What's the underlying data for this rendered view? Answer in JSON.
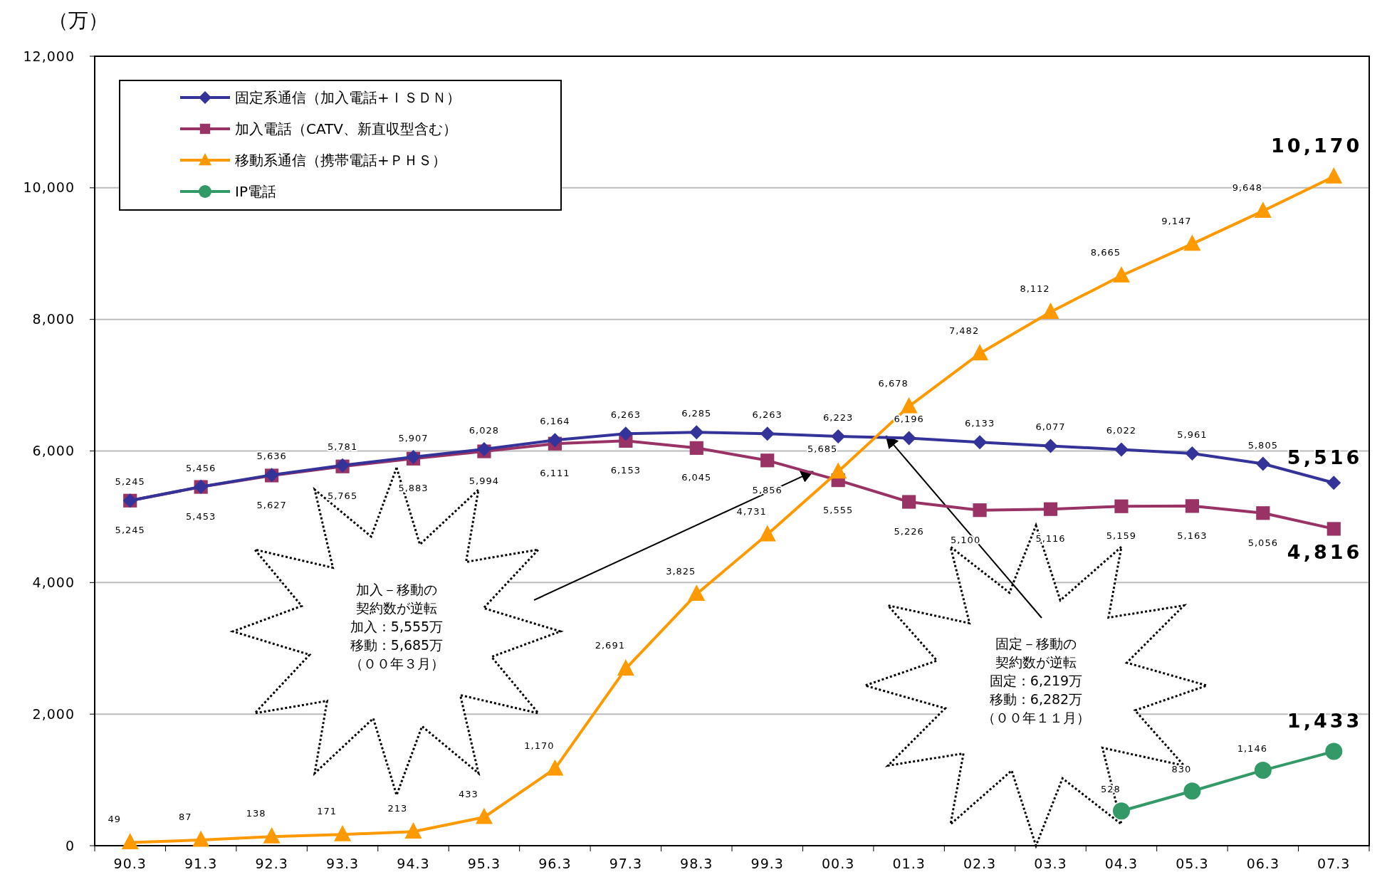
{
  "chart_data": {
    "type": "line",
    "ylabel": "（万）",
    "categories": [
      "90.3",
      "91.3",
      "92.3",
      "93.3",
      "94.3",
      "95.3",
      "96.3",
      "97.3",
      "98.3",
      "99.3",
      "00.3",
      "01.3",
      "02.3",
      "03.3",
      "04.3",
      "05.3",
      "06.3",
      "07.3"
    ],
    "ylim": [
      0,
      12000
    ],
    "yticks": [
      0,
      {
        "value": 2000,
        "label": "2,000"
      },
      {
        "value": 4000,
        "label": "4,000"
      },
      {
        "value": 6000,
        "label": "6,000"
      },
      {
        "value": 8000,
        "label": "8,000"
      },
      {
        "value": 10000,
        "label": "10,000"
      },
      {
        "value": 12000,
        "label": "12,000"
      }
    ],
    "grid": "y",
    "legend": "top left",
    "series": [
      {
        "name": "固定系通信（加入電話+ＩＳＤＮ）",
        "color": "#333399",
        "marker": "diamond",
        "values": [
          5245,
          5456,
          5636,
          5781,
          5907,
          6028,
          6164,
          6263,
          6285,
          6263,
          6223,
          6196,
          6133,
          6077,
          6022,
          5961,
          5805,
          5516
        ],
        "value_labels": [
          "5,245",
          "5,456",
          "5,636",
          "5,781",
          "5,907",
          "6,028",
          "6,164",
          "6,263",
          "6,285",
          "6,263",
          "6,223",
          "6,196",
          "6,133",
          "6,077",
          "6,022",
          "5,961",
          "5,805",
          "5,516"
        ]
      },
      {
        "name": "加入電話（CATV、新直収型含む）",
        "color": "#993366",
        "marker": "square",
        "values": [
          5245,
          5453,
          5627,
          5765,
          5883,
          5994,
          6111,
          6153,
          6045,
          5856,
          5555,
          5226,
          5100,
          5116,
          5159,
          5163,
          5056,
          4816
        ],
        "value_labels": [
          "5,245",
          "5,453",
          "5,627",
          "5,765",
          "5,883",
          "5,994",
          "6,111",
          "6,153",
          "6,045",
          "5,856",
          "5,555",
          "5,226",
          "5,100",
          "5,116",
          "5,159",
          "5,163",
          "5,056",
          "4,816"
        ]
      },
      {
        "name": "移動系通信（携帯電話+ＰＨＳ）",
        "color": "#ff9900",
        "marker": "triangle",
        "values": [
          49,
          87,
          138,
          171,
          213,
          433,
          1170,
          2691,
          3825,
          4731,
          5685,
          6678,
          7482,
          8112,
          8665,
          9147,
          9648,
          10170
        ],
        "value_labels": [
          "49",
          "87",
          "138",
          "171",
          "213",
          "433",
          "1,170",
          "2,691",
          "3,825",
          "4,731",
          "5,685",
          "6,678",
          "7,482",
          "8,112",
          "8,665",
          "9,147",
          "9,648",
          "10,170"
        ]
      },
      {
        "name": "IP電話",
        "color": "#339966",
        "marker": "circle",
        "values": [
          null,
          null,
          null,
          null,
          null,
          null,
          null,
          null,
          null,
          null,
          null,
          null,
          null,
          null,
          528,
          830,
          1146,
          1433
        ],
        "value_labels": [
          null,
          null,
          null,
          null,
          null,
          null,
          null,
          null,
          null,
          null,
          null,
          null,
          null,
          null,
          "528",
          "830",
          "1,146",
          "1,433"
        ]
      }
    ],
    "annotations": [
      "加入－移動の",
      "契約数が逆転",
      "加入：5,555万",
      "移動：5,685万",
      "（００年３月）",
      "固定－移動の",
      "契約数が逆転",
      "固定：6,219万",
      "移動：6,282万",
      "（００年１１月）"
    ]
  }
}
